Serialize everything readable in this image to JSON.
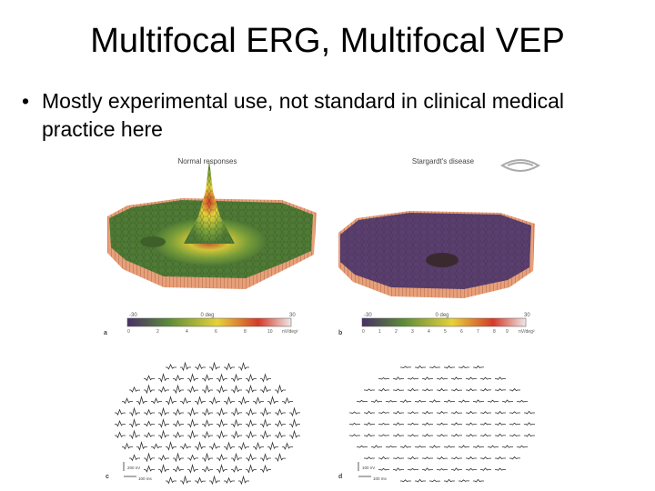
{
  "slide": {
    "title": "Multifocal ERG, Multifocal VEP",
    "bullets": [
      {
        "marker": "•",
        "text": "Mostly experimental use, not standard in clinical medical practice here"
      }
    ]
  },
  "figure": {
    "panel_a": {
      "title": "Normal responses",
      "letter": "a",
      "axis_left": "-30",
      "axis_mid": "0 deg",
      "axis_right": "30",
      "scale_ticks": [
        "0",
        "2",
        "4",
        "6",
        "8",
        "10"
      ],
      "scale_unit": "nV/deg²"
    },
    "panel_b": {
      "title": "Stargardt's disease",
      "letter": "b",
      "axis_left": "-30",
      "axis_mid": "0 deg",
      "axis_right": "30",
      "scale_ticks": [
        "0",
        "1",
        "2",
        "3",
        "4",
        "5",
        "6",
        "7",
        "8",
        "9"
      ],
      "scale_unit": "nV/deg²"
    },
    "panel_c": {
      "letter": "c",
      "scale_v": "200 nV",
      "scale_t": "100 ms"
    },
    "panel_d": {
      "letter": "d",
      "scale_v": "100 nV",
      "scale_t": "100 ms"
    },
    "colors": {
      "green": "#4f7a35",
      "salmon": "#e8a07a",
      "purple": "#5a3f6e",
      "yellow": "#d9c43a",
      "red": "#d43a2a",
      "trace": "#333333"
    }
  }
}
